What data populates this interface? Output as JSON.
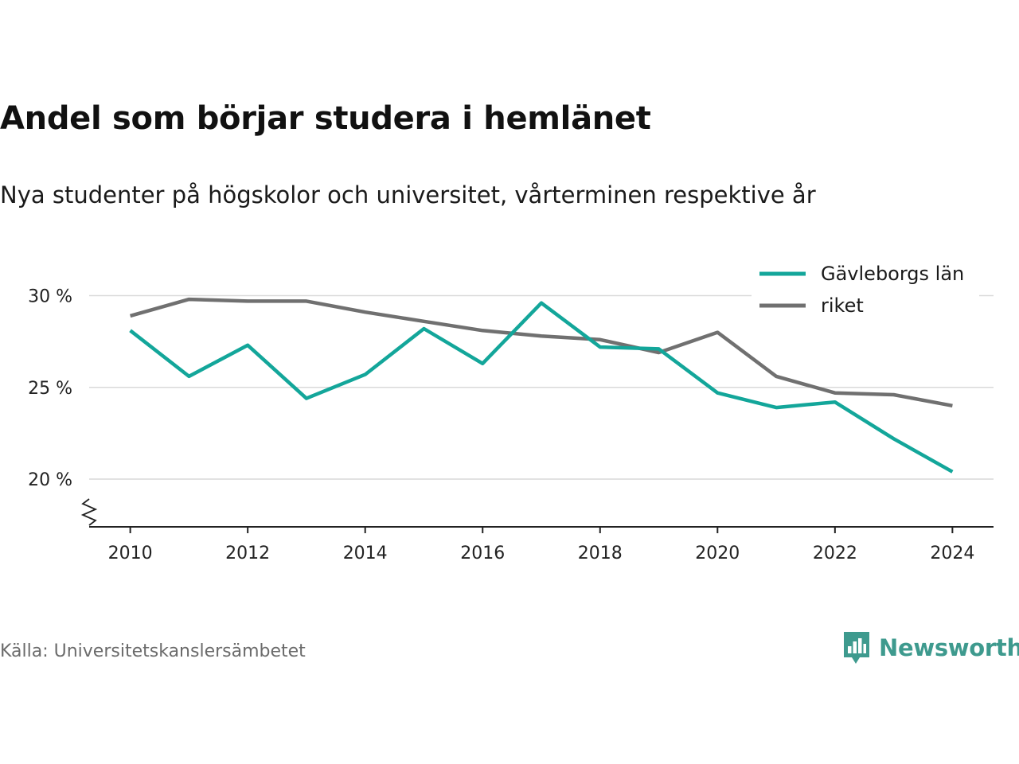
{
  "header": {
    "title": "Andel som börjar studera i hemlänet",
    "subtitle": "Nya studenter på högskolor och universitet, vårterminen respektive år"
  },
  "footer": {
    "source": "Källa: Universitetskanslersämbetet",
    "brand": "Newsworthy",
    "brand_icon": "bar-chart-speech-bubble-icon",
    "brand_color": "#3e9a8e"
  },
  "chart_data": {
    "type": "line",
    "title": "Andel som börjar studera i hemlänet",
    "subtitle": "Nya studenter på högskolor och universitet, vårterminen respektive år",
    "xlabel": "",
    "ylabel": "",
    "x": [
      2010,
      2011,
      2012,
      2013,
      2014,
      2015,
      2016,
      2017,
      2018,
      2019,
      2020,
      2021,
      2022,
      2023,
      2024
    ],
    "xticks": [
      2010,
      2012,
      2014,
      2016,
      2018,
      2020,
      2022,
      2024
    ],
    "xtick_labels": [
      "2010",
      "2012",
      "2014",
      "2016",
      "2018",
      "2020",
      "2022",
      "2024"
    ],
    "yticks": [
      20,
      25,
      30
    ],
    "ytick_labels": [
      "20 %",
      "25 %",
      "30 %"
    ],
    "ylim": [
      17.4,
      31.8
    ],
    "xlim": [
      2009.3,
      2024.7
    ],
    "y_axis_break": true,
    "grid": true,
    "legend_position": "top-right",
    "series": [
      {
        "name": "Gävleborgs län",
        "color": "#13a69a",
        "values": [
          28.1,
          25.6,
          27.3,
          24.4,
          25.7,
          28.2,
          26.3,
          29.6,
          27.2,
          27.1,
          24.7,
          23.9,
          24.2,
          22.2,
          20.4
        ]
      },
      {
        "name": "riket",
        "color": "#707070",
        "values": [
          28.9,
          29.8,
          29.7,
          29.7,
          29.1,
          28.6,
          28.1,
          27.8,
          27.6,
          26.9,
          28.0,
          25.6,
          24.7,
          24.6,
          24.0
        ]
      }
    ]
  }
}
